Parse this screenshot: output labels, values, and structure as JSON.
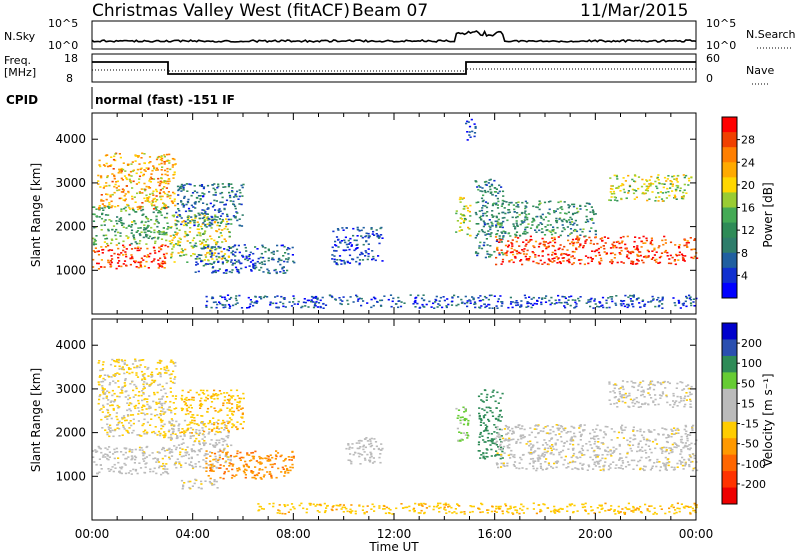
{
  "header": {
    "title": "Christmas Valley West (fitACF)",
    "beam": "Beam 07",
    "date": "11/Mar/2015"
  },
  "top_panels": {
    "nsky_label": "N.Sky",
    "nsky_ticks": [
      "10^5",
      "10^0"
    ],
    "nsearch_label": "N.Search",
    "nsearch_ticks": [
      "10^5",
      "10^0"
    ],
    "freq_label_1": "Freq.",
    "freq_label_2": "[MHz]",
    "freq_ticks": [
      "18",
      "8"
    ],
    "nave_label": "Nave",
    "nave_ticks": [
      "60",
      "0"
    ],
    "cpid_label": "CPID",
    "cpid_text": "normal (fast) -151 IF"
  },
  "chart_data": [
    {
      "type": "heatmap",
      "name": "power",
      "xlabel": "Time UT",
      "ylabel": "Slant Range [km]",
      "xlim": [
        0,
        24
      ],
      "ylim": [
        0,
        4600
      ],
      "x_ticks": [
        "00:00",
        "04:00",
        "08:00",
        "12:00",
        "16:00",
        "20:00",
        "00:00"
      ],
      "y_ticks": [
        1000,
        2000,
        3000,
        4000
      ],
      "colorbar": {
        "label": "Power [dB]",
        "ticks": [
          "28",
          "24",
          "20",
          "16",
          "12",
          "8",
          "4"
        ],
        "colors": [
          "#ff0000",
          "#f04000",
          "#ff7f00",
          "#ffaa00",
          "#ffd700",
          "#99cc33",
          "#44aa55",
          "#2e8b57",
          "#2e7d6b",
          "#1f5fa0",
          "#1030d0",
          "#0000ff"
        ]
      },
      "regions": [
        {
          "t0": 0.0,
          "t1": 3.0,
          "r0": 1050,
          "r1": 1600,
          "v": 28
        },
        {
          "t0": 0.0,
          "t1": 3.0,
          "r0": 1600,
          "r1": 2500,
          "v": 14
        },
        {
          "t0": 0.2,
          "t1": 3.3,
          "r0": 2400,
          "r1": 3700,
          "v": 22
        },
        {
          "t0": 3.0,
          "t1": 5.5,
          "r0": 1200,
          "r1": 2300,
          "v": 18
        },
        {
          "t0": 3.3,
          "t1": 6.0,
          "r0": 2000,
          "r1": 3000,
          "v": 8
        },
        {
          "t0": 4.0,
          "t1": 8.0,
          "r0": 950,
          "r1": 1600,
          "v": 7
        },
        {
          "t0": 9.5,
          "t1": 11.5,
          "r0": 1150,
          "r1": 2000,
          "v": 5
        },
        {
          "t0": 14.4,
          "t1": 15.0,
          "r0": 1800,
          "r1": 2700,
          "v": 18
        },
        {
          "t0": 14.8,
          "t1": 15.2,
          "r0": 4000,
          "r1": 4500,
          "v": 4
        },
        {
          "t0": 15.2,
          "t1": 16.3,
          "r0": 1300,
          "r1": 3100,
          "v": 10
        },
        {
          "t0": 16.0,
          "t1": 24.0,
          "r0": 1150,
          "r1": 1800,
          "v": 28
        },
        {
          "t0": 16.0,
          "t1": 20.0,
          "r0": 1800,
          "r1": 2600,
          "v": 12
        },
        {
          "t0": 20.5,
          "t1": 23.8,
          "r0": 2600,
          "r1": 3200,
          "v": 18
        },
        {
          "t0": 4.5,
          "t1": 24.0,
          "r0": 150,
          "r1": 450,
          "v": 6
        }
      ]
    },
    {
      "type": "heatmap",
      "name": "velocity",
      "xlabel": "Time UT",
      "ylabel": "Slant Range [km]",
      "xlim": [
        0,
        24
      ],
      "ylim": [
        0,
        4600
      ],
      "x_ticks": [
        "00:00",
        "04:00",
        "08:00",
        "12:00",
        "16:00",
        "20:00",
        "00:00"
      ],
      "y_ticks": [
        1000,
        2000,
        3000,
        4000
      ],
      "colorbar": {
        "label": "Velocity [m s⁻¹]",
        "ticks": [
          "200",
          "100",
          "50",
          "15",
          "-15",
          "-50",
          "-100",
          "-200"
        ],
        "colors": [
          "#0000cc",
          "#2a4fb0",
          "#2e8b57",
          "#66cc33",
          "#bbbbbb",
          "#bbbbbb",
          "#ffcc00",
          "#ff9900",
          "#ff6600",
          "#ff3300",
          "#ee0000"
        ]
      },
      "regions": [
        {
          "t0": 0.0,
          "t1": 3.0,
          "r0": 1050,
          "r1": 1700,
          "v": 0
        },
        {
          "t0": 0.2,
          "t1": 3.3,
          "r0": 1900,
          "r1": 3700,
          "v": -20
        },
        {
          "t0": 3.0,
          "t1": 5.5,
          "r0": 1200,
          "r1": 2300,
          "v": 0
        },
        {
          "t0": 3.5,
          "t1": 6.0,
          "r0": 2000,
          "r1": 3000,
          "v": -40
        },
        {
          "t0": 4.5,
          "t1": 8.0,
          "r0": 950,
          "r1": 1600,
          "v": -90
        },
        {
          "t0": 3.5,
          "t1": 5.0,
          "r0": 700,
          "r1": 950,
          "v": 0
        },
        {
          "t0": 10.0,
          "t1": 11.5,
          "r0": 1300,
          "r1": 1900,
          "v": 20
        },
        {
          "t0": 14.4,
          "t1": 15.0,
          "r0": 1800,
          "r1": 2600,
          "v": 60
        },
        {
          "t0": 15.3,
          "t1": 16.3,
          "r0": 1400,
          "r1": 3000,
          "v": 120
        },
        {
          "t0": 16.0,
          "t1": 24.0,
          "r0": 1150,
          "r1": 2200,
          "v": 0
        },
        {
          "t0": 20.5,
          "t1": 23.8,
          "r0": 2600,
          "r1": 3200,
          "v": 0
        },
        {
          "t0": 6.5,
          "t1": 24.0,
          "r0": 150,
          "r1": 400,
          "v": -40
        }
      ]
    }
  ]
}
